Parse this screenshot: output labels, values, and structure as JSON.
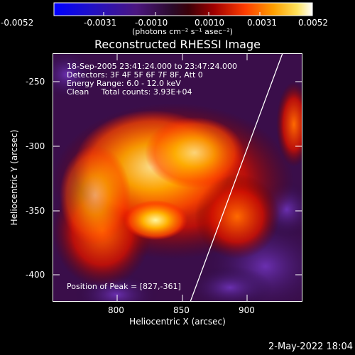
{
  "colorbar": {
    "ticks": [
      "-0.0052",
      "-0.0031",
      "-0.0010",
      "0.0010",
      "0.0031",
      "0.0052"
    ],
    "units_text": "(photons cm⁻² s⁻¹ asec⁻²)"
  },
  "plot": {
    "title": "Reconstructed RHESSI Image",
    "info_lines": [
      "18-Sep-2005 23:41:24.000 to 23:47:24.000",
      "Detectors: 3F 4F 5F 6F 7F 8F, Att 0",
      "Energy Range: 6.0 - 12.0 keV",
      "Clean     Total counts: 3.93E+04"
    ],
    "peak_text": "Position of Peak = [827,-361]",
    "x_ticks": [
      "800",
      "850",
      "900"
    ],
    "y_ticks": [
      "-250",
      "-300",
      "-350",
      "-400"
    ],
    "xlabel": "Heliocentric X (arcsec)",
    "ylabel": "Heliocentric Y (arcsec)"
  },
  "footer": {
    "timestamp": "2-May-2022 18:04"
  },
  "colors": {
    "background": "#000000",
    "text": "#ffffff"
  }
}
